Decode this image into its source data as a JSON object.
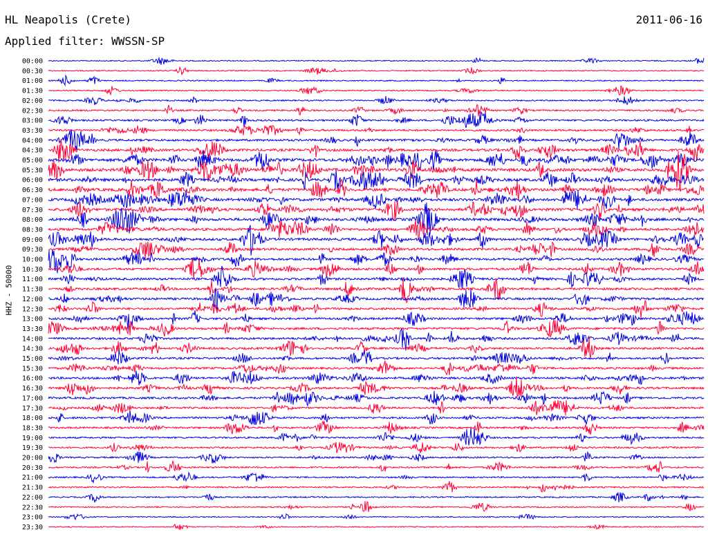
{
  "header": {
    "station": "HL Neapolis (Crete)",
    "filter": "Applied filter: WWSSN-SP",
    "date": "2011-06-16",
    "channel_label": "HHZ - 50000"
  },
  "colors": {
    "even_row": "#0000dd",
    "odd_row": "#ff0033"
  },
  "chart_data": {
    "type": "line",
    "title": "HL Neapolis (Crete)",
    "subtitle": "Applied filter: WWSSN-SP",
    "ylabel": "HHZ - 50000",
    "xlabel": "",
    "rows": [
      "00:00",
      "00:30",
      "01:00",
      "01:30",
      "02:00",
      "02:30",
      "03:00",
      "03:30",
      "04:00",
      "04:30",
      "05:00",
      "05:30",
      "06:00",
      "06:30",
      "07:00",
      "07:30",
      "08:00",
      "08:30",
      "09:00",
      "09:30",
      "10:00",
      "10:30",
      "11:00",
      "11:30",
      "12:00",
      "12:30",
      "13:00",
      "13:30",
      "14:00",
      "14:30",
      "15:00",
      "15:30",
      "16:00",
      "16:30",
      "17:00",
      "17:30",
      "18:00",
      "18:30",
      "19:00",
      "19:30",
      "20:00",
      "20:30",
      "21:00",
      "21:30",
      "22:00",
      "22:30",
      "23:00",
      "23:30"
    ],
    "row_minutes": 30,
    "row_activity": [
      0.08,
      0.1,
      0.12,
      0.12,
      0.22,
      0.3,
      0.4,
      0.45,
      0.55,
      0.7,
      0.9,
      0.95,
      0.85,
      0.85,
      0.8,
      0.8,
      0.8,
      0.7,
      0.7,
      0.65,
      0.65,
      0.6,
      0.6,
      0.6,
      0.6,
      0.55,
      0.55,
      0.55,
      0.55,
      0.55,
      0.5,
      0.5,
      0.55,
      0.55,
      0.5,
      0.45,
      0.45,
      0.4,
      0.35,
      0.35,
      0.3,
      0.3,
      0.25,
      0.25,
      0.2,
      0.15,
      0.1,
      0.08
    ],
    "grid": false,
    "legend": "none"
  }
}
